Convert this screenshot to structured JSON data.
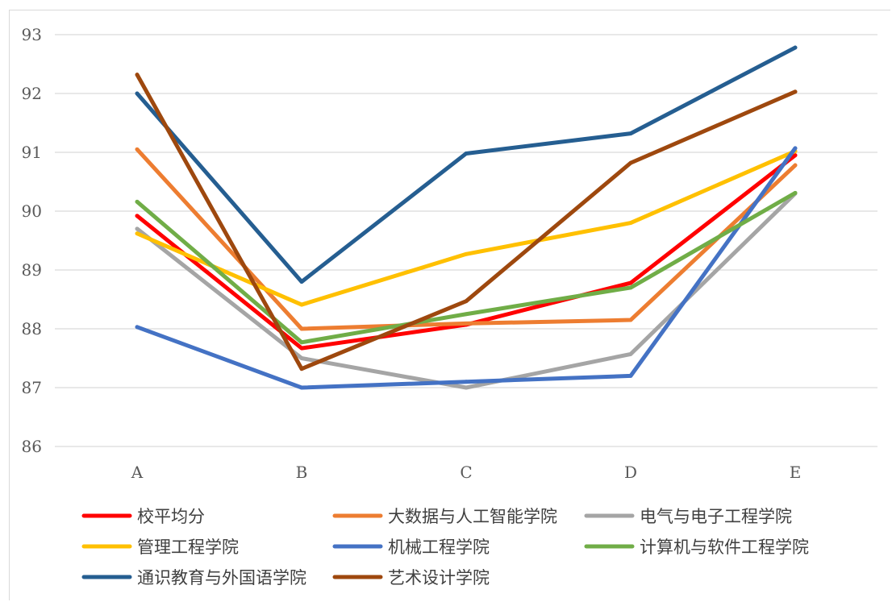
{
  "chart_data": {
    "type": "line",
    "categories": [
      "A",
      "B",
      "C",
      "D",
      "E"
    ],
    "ylim": [
      86,
      93
    ],
    "yticks": [
      86,
      87,
      88,
      89,
      90,
      91,
      92,
      93
    ],
    "grid": true,
    "legend_position": "bottom",
    "series": [
      {
        "name": "校平均分",
        "color": "#ff0000",
        "values": [
          89.92,
          87.67,
          88.07,
          88.78,
          90.95
        ]
      },
      {
        "name": "大数据与人工智能学院",
        "color": "#ed7d31",
        "values": [
          91.05,
          88.0,
          88.09,
          88.15,
          90.78
        ]
      },
      {
        "name": "电气与电子工程学院",
        "color": "#a5a5a5",
        "values": [
          89.7,
          87.5,
          87.0,
          87.57,
          90.3
        ]
      },
      {
        "name": "管理工程学院",
        "color": "#ffc000",
        "values": [
          89.62,
          88.41,
          89.27,
          89.8,
          91.02
        ]
      },
      {
        "name": "机械工程学院",
        "color": "#4472c4",
        "values": [
          88.03,
          87.0,
          87.1,
          87.2,
          91.07
        ]
      },
      {
        "name": "计算机与软件工程学院",
        "color": "#70ad47",
        "values": [
          90.16,
          87.77,
          88.25,
          88.7,
          90.31
        ]
      },
      {
        "name": "通识教育与外国语学院",
        "color": "#255e91",
        "values": [
          92.0,
          88.8,
          90.98,
          91.32,
          92.78
        ]
      },
      {
        "name": "艺术设计学院",
        "color": "#9e480e",
        "values": [
          92.32,
          87.32,
          88.47,
          90.82,
          92.03
        ]
      }
    ]
  }
}
